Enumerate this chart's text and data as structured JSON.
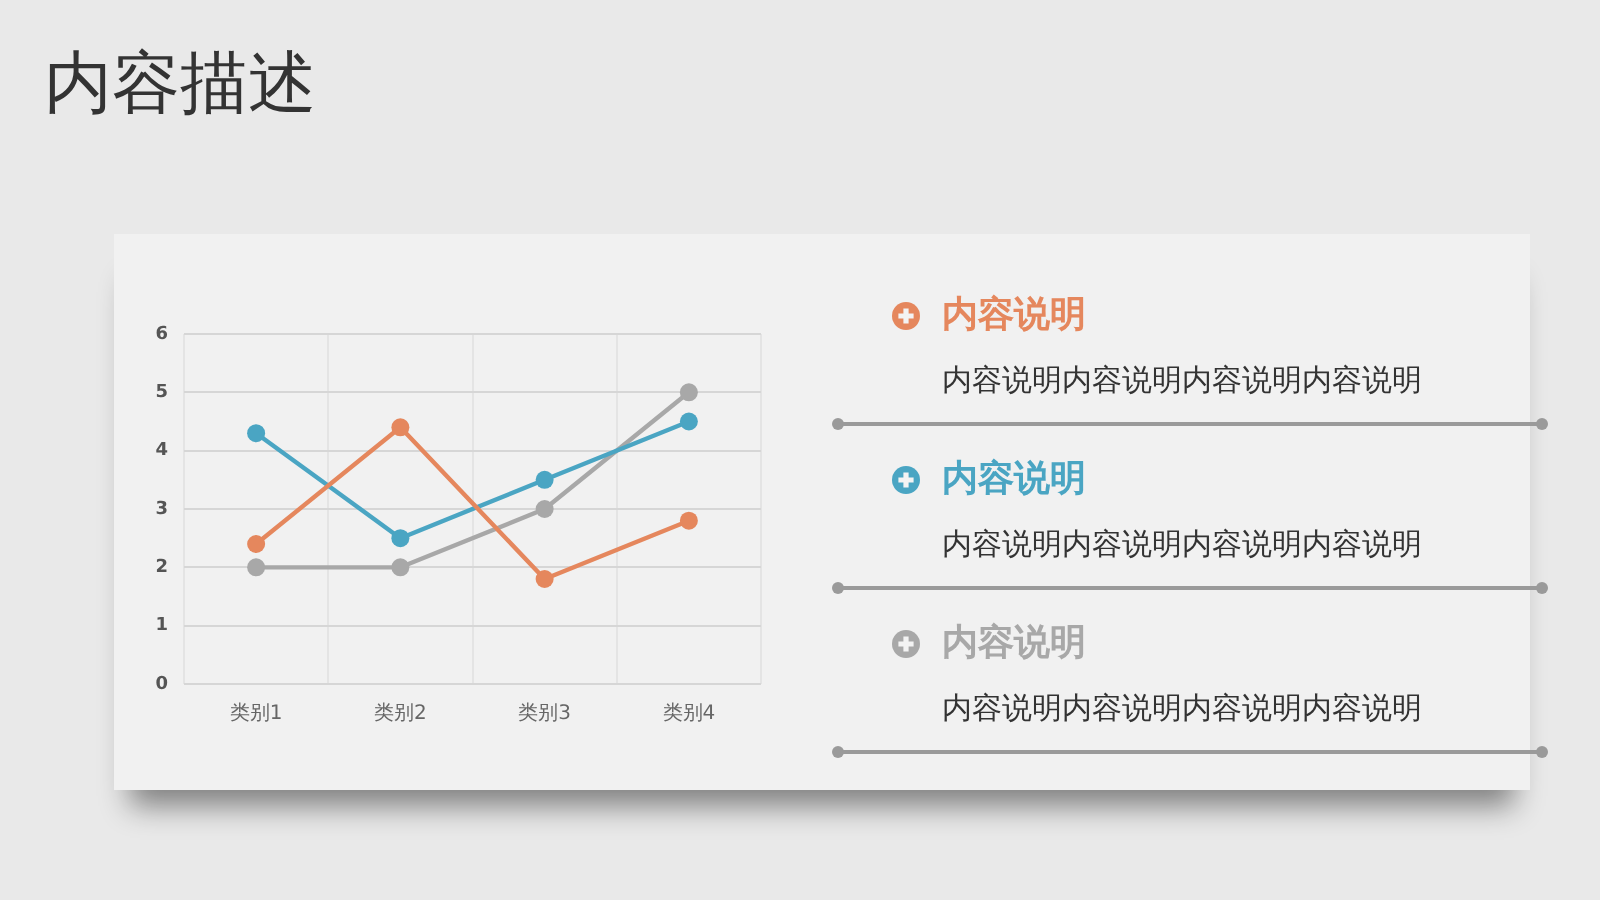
{
  "chart_data": [
    {
      "type": "line",
      "title": "内容描述",
      "categories": [
        "类别1",
        "类别2",
        "类别3",
        "类别4"
      ],
      "series": [
        {
          "color": "#e5875d",
          "values": [
            2.4,
            4.4,
            1.8,
            2.8
          ]
        },
        {
          "color": "#4aa5c3",
          "values": [
            4.3,
            2.5,
            3.5,
            4.5
          ]
        },
        {
          "color": "#a8a8a8",
          "values": [
            2,
            2,
            3,
            5
          ]
        }
      ],
      "ylim": [
        0,
        6
      ],
      "yticks": [
        0,
        1,
        2,
        3,
        4,
        5,
        6
      ],
      "grid": true,
      "marker": "circle",
      "line_style": "solid"
    },
    {
      "type": "other",
      "annotations": [
        "内容说明",
        "内容说明内容说明内容说明内容说明",
        "内容说明",
        "内容说明内容说明内容说明内容说明",
        "内容说明",
        "内容说明内容说明内容说明内容说明"
      ]
    }
  ]
}
